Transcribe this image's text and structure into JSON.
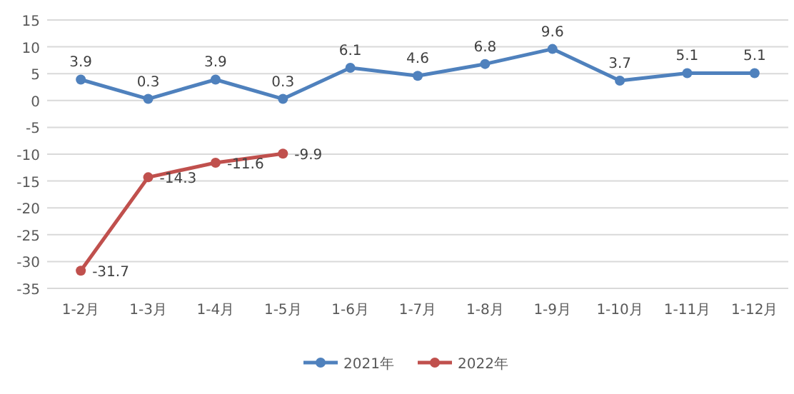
{
  "chart_data": {
    "type": "line",
    "categories": [
      "1-2月",
      "1-3月",
      "1-4月",
      "1-5月",
      "1-6月",
      "1-7月",
      "1-8月",
      "1-9月",
      "1-10月",
      "1-11月",
      "1-12月"
    ],
    "series": [
      {
        "name": "2021年",
        "color": "#4f81bd",
        "values": [
          3.9,
          0.3,
          3.9,
          0.3,
          6.1,
          4.6,
          6.8,
          9.6,
          3.7,
          5.1,
          5.1
        ]
      },
      {
        "name": "2022年",
        "color": "#c0504d",
        "values": [
          -31.7,
          -14.3,
          -11.6,
          -9.9,
          null,
          null,
          null,
          null,
          null,
          null,
          null
        ]
      }
    ],
    "ylim": [
      -35,
      15
    ],
    "yticks": [
      -35,
      -30,
      -25,
      -20,
      -15,
      -10,
      -5,
      0,
      5,
      10,
      15
    ],
    "grid": "y",
    "legend": "bottom",
    "marker": "circle",
    "data_labels": true
  }
}
